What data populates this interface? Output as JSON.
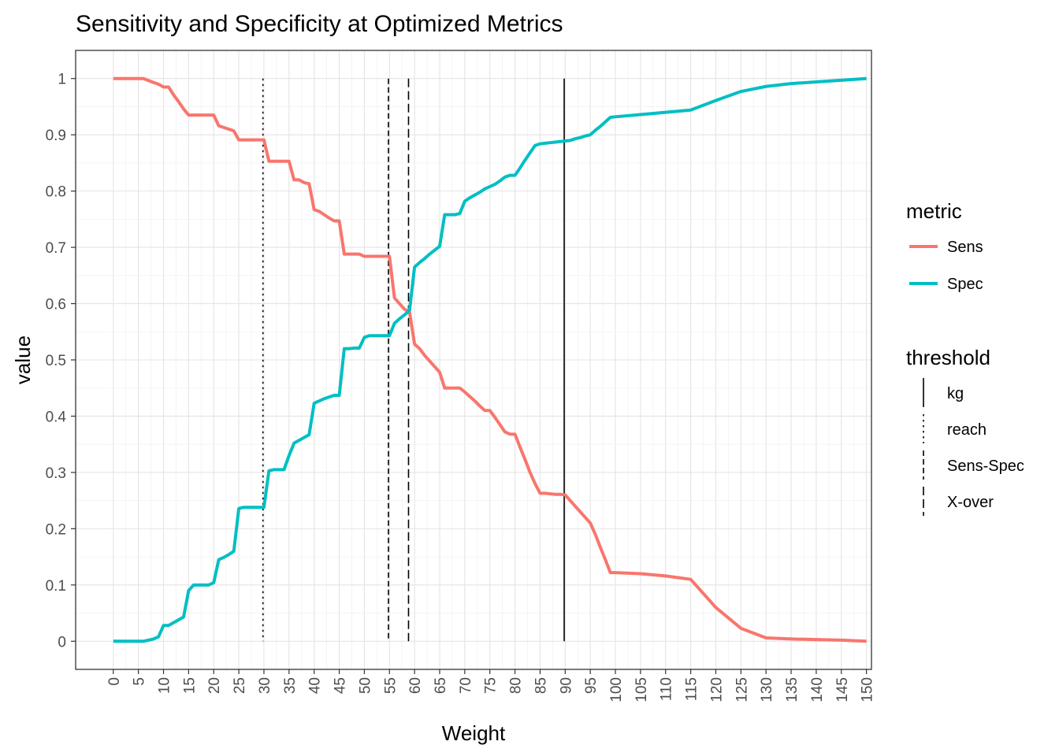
{
  "chart_data": {
    "type": "line",
    "title": "Sensitivity and Specificity at Optimized Metrics",
    "xlabel": "Weight",
    "ylabel": "value",
    "xlim": [
      -7.5,
      151
    ],
    "ylim": [
      -0.05,
      1.05
    ],
    "x_ticks": [
      0,
      5,
      10,
      15,
      20,
      25,
      30,
      35,
      40,
      45,
      50,
      55,
      60,
      65,
      70,
      75,
      80,
      85,
      90,
      95,
      100,
      105,
      110,
      115,
      120,
      125,
      130,
      135,
      140,
      145,
      150
    ],
    "y_ticks": [
      0,
      0.1,
      0.2,
      0.3,
      0.4,
      0.5,
      0.6,
      0.7,
      0.8,
      0.9,
      1
    ],
    "y_tick_labels": [
      "0",
      "0.1",
      "0.2",
      "0.3",
      "0.4",
      "0.5",
      "0.6",
      "0.7",
      "0.8",
      "0.9",
      "1"
    ],
    "grid": true,
    "legend_position": "right",
    "series": [
      {
        "name": "Sens",
        "color": "#F8766D",
        "x": [
          0,
          6,
          8,
          9,
          10,
          11,
          12,
          13,
          14,
          15,
          16,
          17,
          18,
          19,
          20,
          21,
          22,
          23,
          24,
          25,
          26,
          27,
          28,
          29,
          30,
          31,
          32,
          33,
          34,
          35,
          36,
          37,
          38,
          39,
          40,
          41,
          42,
          43,
          44,
          45,
          46,
          47,
          48,
          49,
          50,
          51,
          52,
          53,
          54,
          55,
          56,
          57,
          58,
          59,
          60,
          61,
          62,
          63,
          64,
          65,
          66,
          67,
          68,
          69,
          70,
          71,
          72,
          73,
          74,
          75,
          76,
          77,
          78,
          79,
          80,
          81,
          82,
          83,
          84,
          85,
          86,
          87,
          88,
          89,
          90,
          91,
          92,
          93,
          94,
          95,
          96,
          97,
          98,
          99,
          100,
          105,
          110,
          115,
          120,
          125,
          130,
          135,
          140,
          145,
          150
        ],
        "y": [
          1,
          1,
          0.993,
          0.99,
          0.985,
          0.985,
          0.971,
          0.959,
          0.946,
          0.935,
          0.935,
          0.935,
          0.935,
          0.935,
          0.935,
          0.916,
          0.913,
          0.91,
          0.907,
          0.891,
          0.891,
          0.891,
          0.891,
          0.891,
          0.891,
          0.853,
          0.853,
          0.853,
          0.853,
          0.853,
          0.82,
          0.82,
          0.815,
          0.813,
          0.767,
          0.764,
          0.758,
          0.752,
          0.747,
          0.747,
          0.688,
          0.688,
          0.688,
          0.688,
          0.684,
          0.684,
          0.684,
          0.684,
          0.684,
          0.684,
          0.61,
          0.6,
          0.59,
          0.585,
          0.528,
          0.52,
          0.508,
          0.498,
          0.488,
          0.478,
          0.45,
          0.45,
          0.45,
          0.45,
          0.443,
          0.435,
          0.427,
          0.418,
          0.41,
          0.41,
          0.398,
          0.385,
          0.372,
          0.368,
          0.368,
          0.345,
          0.323,
          0.3,
          0.28,
          0.263,
          0.263,
          0.262,
          0.261,
          0.261,
          0.26,
          0.25,
          0.24,
          0.23,
          0.22,
          0.21,
          0.19,
          0.167,
          0.145,
          0.122,
          0.122,
          0.12,
          0.116,
          0.11,
          0.06,
          0.023,
          0.006,
          0.004,
          0.003,
          0.002,
          0
        ]
      },
      {
        "name": "Spec",
        "color": "#00BFC4",
        "x": [
          0,
          6,
          8,
          9,
          10,
          11,
          12,
          13,
          14,
          15,
          16,
          17,
          18,
          19,
          20,
          21,
          22,
          23,
          24,
          25,
          26,
          27,
          28,
          29,
          30,
          31,
          32,
          33,
          34,
          35,
          36,
          37,
          38,
          39,
          40,
          41,
          42,
          43,
          44,
          45,
          46,
          47,
          48,
          49,
          50,
          51,
          52,
          53,
          54,
          55,
          56,
          57,
          58,
          59,
          60,
          61,
          62,
          63,
          64,
          65,
          66,
          67,
          68,
          69,
          70,
          71,
          72,
          73,
          74,
          75,
          76,
          77,
          78,
          79,
          80,
          81,
          82,
          83,
          84,
          85,
          86,
          87,
          88,
          89,
          90,
          91,
          92,
          93,
          94,
          95,
          96,
          97,
          98,
          99,
          100,
          105,
          110,
          115,
          120,
          125,
          130,
          135,
          140,
          145,
          150
        ],
        "y": [
          0,
          0,
          0.004,
          0.008,
          0.028,
          0.028,
          0.033,
          0.038,
          0.043,
          0.09,
          0.1,
          0.1,
          0.1,
          0.1,
          0.104,
          0.145,
          0.149,
          0.154,
          0.16,
          0.236,
          0.238,
          0.238,
          0.238,
          0.238,
          0.238,
          0.303,
          0.305,
          0.305,
          0.305,
          0.33,
          0.352,
          0.357,
          0.362,
          0.367,
          0.423,
          0.427,
          0.431,
          0.434,
          0.437,
          0.437,
          0.52,
          0.52,
          0.521,
          0.521,
          0.54,
          0.543,
          0.543,
          0.543,
          0.543,
          0.543,
          0.565,
          0.573,
          0.58,
          0.588,
          0.665,
          0.673,
          0.68,
          0.688,
          0.695,
          0.702,
          0.758,
          0.758,
          0.758,
          0.76,
          0.782,
          0.788,
          0.793,
          0.798,
          0.804,
          0.808,
          0.812,
          0.818,
          0.825,
          0.828,
          0.828,
          0.841,
          0.855,
          0.868,
          0.881,
          0.884,
          0.885,
          0.886,
          0.887,
          0.888,
          0.889,
          0.89,
          0.893,
          0.895,
          0.898,
          0.9,
          0.908,
          0.915,
          0.923,
          0.931,
          0.932,
          0.936,
          0.94,
          0.944,
          0.961,
          0.977,
          0.986,
          0.991,
          0.994,
          0.997,
          1
        ]
      }
    ],
    "thresholds": [
      {
        "name": "kg",
        "x": 89.8,
        "style": "solid"
      },
      {
        "name": "reach",
        "x": 29.8,
        "style": "dotted"
      },
      {
        "name": "Sens-Spec",
        "x": 54.8,
        "style": "dashed"
      },
      {
        "name": "X-over",
        "x": 58.8,
        "style": "longdash"
      }
    ]
  },
  "legend": {
    "metric_title": "metric",
    "metric_items": [
      {
        "label": "Sens",
        "color": "#F8766D"
      },
      {
        "label": "Spec",
        "color": "#00BFC4"
      }
    ],
    "threshold_title": "threshold",
    "threshold_items": [
      {
        "label": "kg",
        "style": "solid"
      },
      {
        "label": "reach",
        "style": "dotted"
      },
      {
        "label": "Sens-Spec",
        "style": "dashed"
      },
      {
        "label": "X-over",
        "style": "longdash"
      }
    ]
  }
}
